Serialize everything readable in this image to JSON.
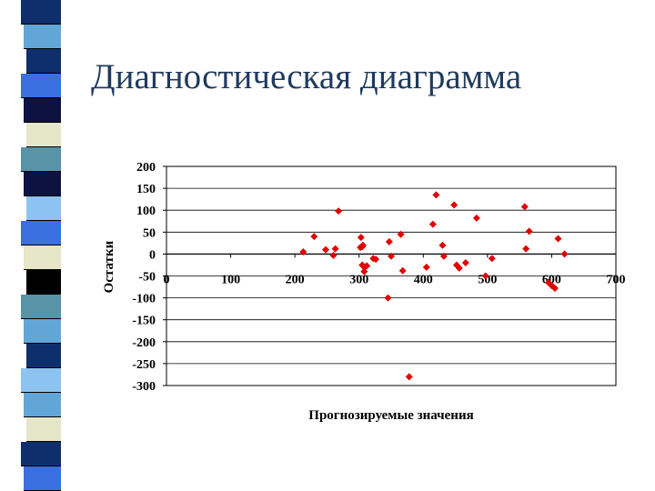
{
  "slide": {
    "title": "Диагностическая диаграмма",
    "stripe_colors": [
      "#0e2f6b",
      "#62a6d8",
      "#0e2f6b",
      "#3b6fe0",
      "#0d1240",
      "#e6e6c8",
      "#5993a8",
      "#0d1240",
      "#8dc3f0",
      "#3b6fe0",
      "#e6e6c8",
      "#000000",
      "#5993a8",
      "#62a6d8",
      "#0e2f6b",
      "#8dc3f0",
      "#62a6d8",
      "#e6e6c8",
      "#0e2f6b",
      "#3b6fe0"
    ]
  },
  "chart_data": {
    "type": "scatter",
    "title": "",
    "xlabel": "Прогнозируемые значения",
    "ylabel": "Остатки",
    "xlim": [
      0,
      700
    ],
    "ylim": [
      -300,
      200
    ],
    "x_ticks": [
      "0",
      "100",
      "200",
      "300",
      "400",
      "500",
      "600",
      "700"
    ],
    "y_ticks": [
      "200",
      "150",
      "100",
      "50",
      "0",
      "-50",
      "-100",
      "-150",
      "-200",
      "-250",
      "-300"
    ],
    "grid": "horizontal",
    "marker_color": "#e00000",
    "marker": "diamond",
    "series": [
      {
        "x": [
          213,
          230,
          248,
          260,
          263,
          268,
          302,
          303,
          305,
          305,
          306,
          308,
          308,
          312,
          322,
          326,
          345,
          347,
          350,
          365,
          368,
          378,
          405,
          415,
          420,
          430,
          432,
          448,
          452,
          456,
          466,
          483,
          497,
          507,
          558,
          560,
          565,
          610,
          620,
          595,
          600,
          605
        ],
        "y": [
          5,
          40,
          10,
          -3,
          12,
          98,
          15,
          38,
          17,
          -25,
          20,
          -40,
          -30,
          -27,
          -10,
          -12,
          -100,
          28,
          -5,
          45,
          -38,
          -280,
          -30,
          68,
          135,
          20,
          -5,
          112,
          -25,
          -32,
          -20,
          82,
          -50,
          -10,
          108,
          12,
          52,
          35,
          0,
          -65,
          -72,
          -78
        ]
      }
    ]
  }
}
